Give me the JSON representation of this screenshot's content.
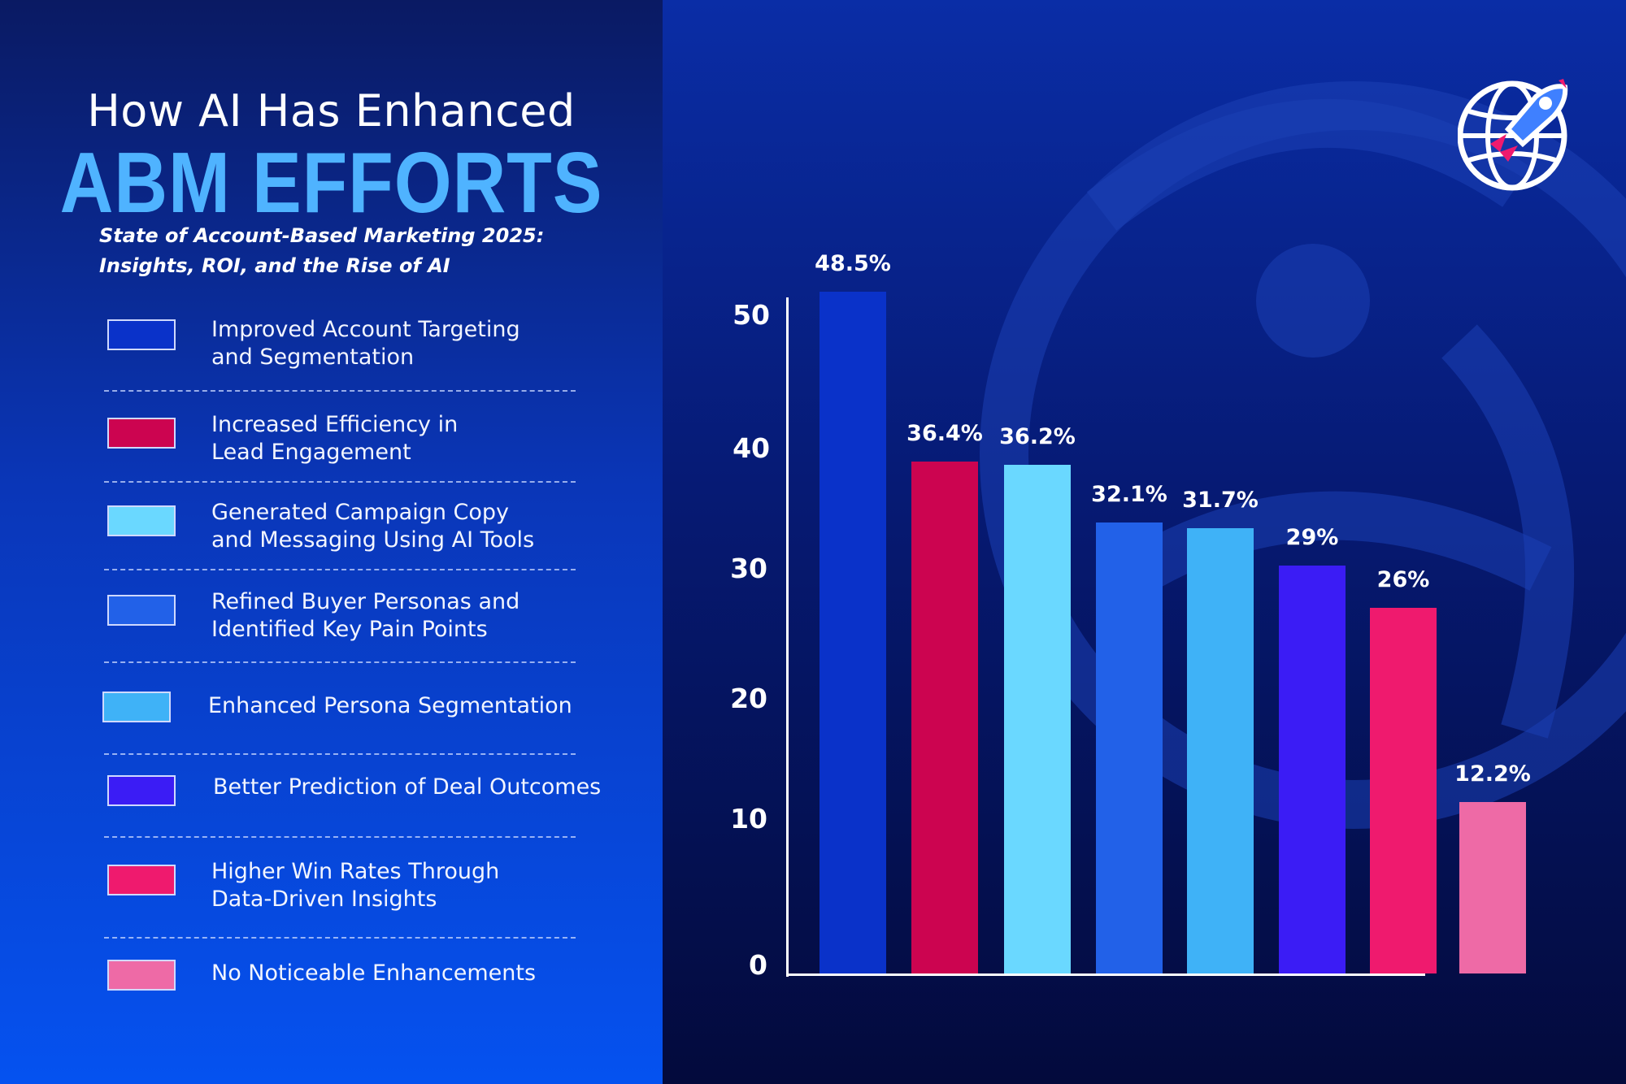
{
  "header": {
    "title_line1": "How AI Has Enhanced",
    "title_line2": "ABM EFFORTS",
    "subtitle_line1": "State of Account-Based Marketing 2025:",
    "subtitle_line2": "Insights, ROI, and the Rise of AI"
  },
  "logo": {
    "icon": "globe-rocket-icon"
  },
  "legend": [
    {
      "line1": "Improved Account Targeting",
      "line2": "and Segmentation",
      "color": "#0a32c9"
    },
    {
      "line1": "Increased Efficiency in",
      "line2": "Lead Engagement",
      "color": "#cc0450"
    },
    {
      "line1": "Generated Campaign Copy",
      "line2": "and Messaging Using AI Tools",
      "color": "#6ad8ff"
    },
    {
      "line1": "Refined Buyer Personas and",
      "line2": "Identified Key Pain Points",
      "color": "#2261e8"
    },
    {
      "line1": "Enhanced Persona Segmentation",
      "line2": "",
      "color": "#3fb2f7"
    },
    {
      "line1": "Better Prediction of Deal Outcomes",
      "line2": "",
      "color": "#3b1cf5"
    },
    {
      "line1": "Higher Win Rates Through",
      "line2": "Data-Driven Insights",
      "color": "#ef1a6e"
    },
    {
      "line1": "No Noticeable Enhancements",
      "line2": "",
      "color": "#ee6aa6"
    }
  ],
  "chart_data": {
    "type": "bar",
    "title": "How AI Has Enhanced ABM EFFORTS",
    "categories": [
      "Improved Account Targeting and Segmentation",
      "Increased Efficiency in Lead Engagement",
      "Generated Campaign Copy and Messaging Using AI Tools",
      "Refined Buyer Personas and Identified Key Pain Points",
      "Enhanced Persona Segmentation",
      "Better Prediction of Deal Outcomes",
      "Higher Win Rates Through Data-Driven Insights",
      "No Noticeable Enhancements"
    ],
    "values": [
      48.5,
      36.4,
      36.2,
      32.1,
      31.7,
      29,
      26,
      12.2
    ],
    "value_labels": [
      "48.5%",
      "36.4%",
      "36.2%",
      "32.1%",
      "31.7%",
      "29%",
      "26%",
      "12.2%"
    ],
    "colors": [
      "#0a32c9",
      "#cc0450",
      "#6ad8ff",
      "#2261e8",
      "#3fb2f7",
      "#3b1cf5",
      "#ef1a6e",
      "#ee6aa6"
    ],
    "y_ticks": [
      "0",
      "10",
      "20",
      "30",
      "40",
      "50"
    ],
    "ylim": [
      0,
      50
    ],
    "xlabel": "",
    "ylabel": "",
    "grid": false,
    "legend_placement": "left"
  }
}
